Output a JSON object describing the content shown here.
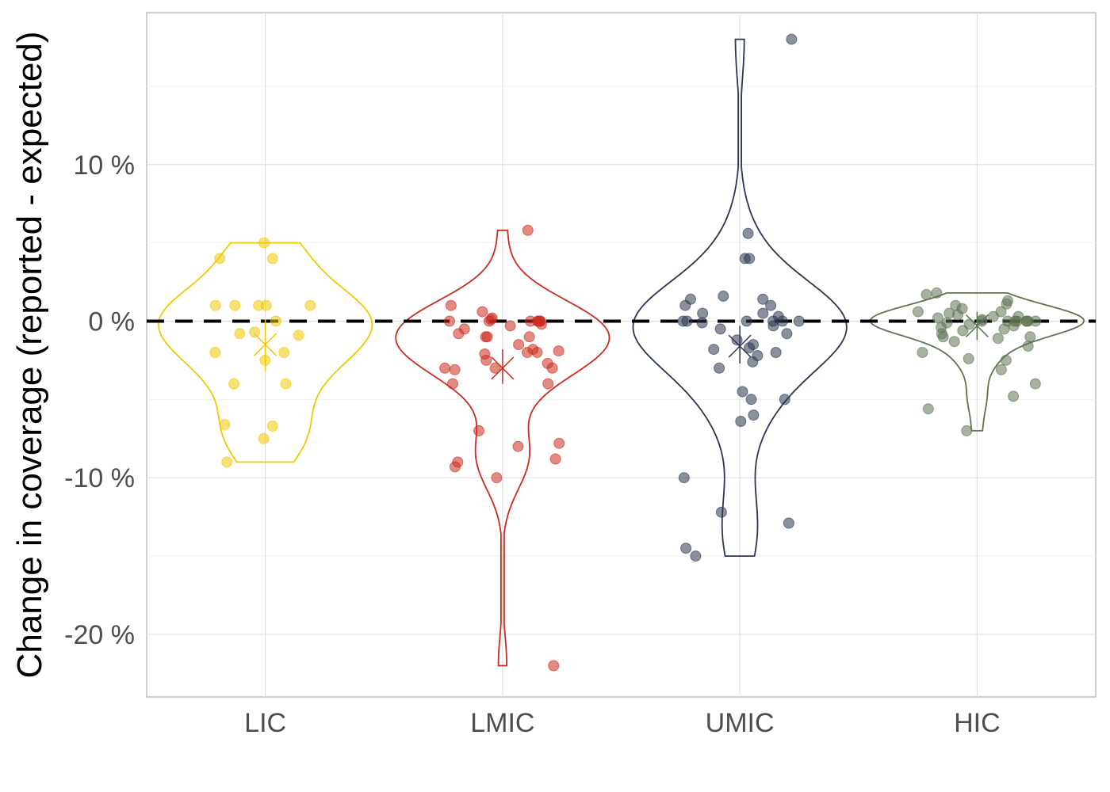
{
  "chart_data": {
    "type": "violin",
    "title": "",
    "xlabel": "",
    "ylabel": "Change in coverage (reported - expected)",
    "ylim": [
      -24,
      19.7
    ],
    "yticks": [
      -20,
      -10,
      0,
      10
    ],
    "ytick_labels": [
      "-20 %",
      "-10 %",
      "0 %",
      "10 %"
    ],
    "y_unit": "%",
    "grid": true,
    "reference_line": {
      "y": 0,
      "style": "dashed",
      "color": "#000000"
    },
    "categories": [
      "LIC",
      "LMIC",
      "UMIC",
      "HIC"
    ],
    "series": [
      {
        "category": "LIC",
        "color": "#F2C800",
        "mean": -1.5,
        "ci": [
          -3.2,
          0.1
        ],
        "range": [
          -9,
          5
        ],
        "points": [
          5,
          4,
          4,
          1,
          1,
          1,
          1,
          1,
          0,
          -0.7,
          -0.8,
          -0.9,
          -2,
          -2,
          -2.5,
          -4,
          -4,
          -6.6,
          -6.7,
          -7.5,
          -9
        ]
      },
      {
        "category": "LMIC",
        "color": "#CC2A1E",
        "mean": -3,
        "ci": [
          -4,
          -1.8
        ],
        "range": [
          -22,
          5.8
        ],
        "points": [
          5.8,
          1,
          0.6,
          0.2,
          0.1,
          0,
          0,
          0,
          0,
          0,
          0,
          0,
          -0.2,
          -0.3,
          -0.5,
          -0.8,
          -1,
          -1,
          -1,
          -1.5,
          -1.8,
          -1.9,
          -2,
          -2,
          -2.1,
          -2.5,
          -2.7,
          -3,
          -3,
          -3,
          -3.1,
          -4,
          -4,
          -7,
          -7.8,
          -8,
          -8.8,
          -9,
          -9.3,
          -10,
          -22
        ]
      },
      {
        "category": "UMIC",
        "color": "#2B3550",
        "mean": -1.6,
        "ci": [
          -2.7,
          -0.3
        ],
        "range": [
          -15,
          18
        ],
        "points": [
          18,
          5.6,
          4,
          4,
          1.6,
          1.4,
          1.4,
          1,
          1,
          0.5,
          0.5,
          0.3,
          0,
          0,
          0,
          0,
          0,
          0,
          -0.1,
          -0.3,
          -0.5,
          -0.8,
          -1.2,
          -1.5,
          -1.7,
          -1.8,
          -2,
          -2.2,
          -2.6,
          -3,
          -4.5,
          -5,
          -5,
          -6,
          -6.4,
          -10,
          -12.2,
          -12.9,
          -14.5,
          -15
        ]
      },
      {
        "category": "HIC",
        "color": "#5E7352",
        "mean": -0.3,
        "ci": [
          -1.2,
          0.6
        ],
        "range": [
          -7,
          1.8
        ],
        "points": [
          1.8,
          1.7,
          1.3,
          1.1,
          1,
          0.8,
          0.6,
          0.6,
          0.5,
          0.4,
          0.3,
          0.3,
          0.2,
          0.1,
          0,
          0,
          0,
          0,
          0,
          0,
          0,
          0,
          -0.1,
          -0.2,
          -0.3,
          -0.4,
          -0.5,
          -0.6,
          -0.8,
          -1,
          -1,
          -1.1,
          -1.3,
          -1.6,
          -2,
          -2.4,
          -2.5,
          -3.1,
          -4,
          -4.8,
          -5.6,
          -7
        ]
      }
    ]
  }
}
